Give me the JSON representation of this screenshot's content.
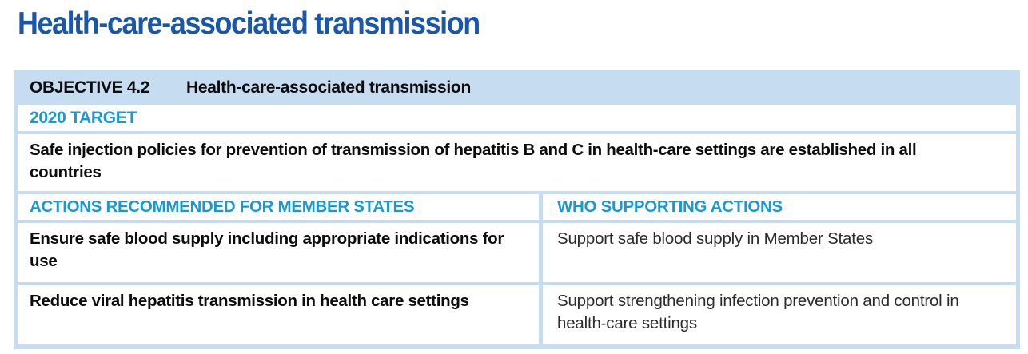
{
  "page": {
    "title": "Health-care-associated transmission"
  },
  "table": {
    "objective": {
      "label": "OBJECTIVE 4.2",
      "title": "Health-care-associated transmission"
    },
    "target": {
      "heading": "2020 TARGET",
      "text": "Safe injection policies for prevention of transmission of hepatitis B and C in health-care settings are established in all countries"
    },
    "columns": {
      "member_states": "ACTIONS RECOMMENDED FOR MEMBER STATES",
      "who": "WHO SUPPORTING ACTIONS"
    },
    "rows": [
      {
        "action": "Ensure safe blood supply including appropriate indications for use",
        "support": "Support safe blood supply in Member States"
      },
      {
        "action": "Reduce viral hepatitis transmission in health care settings",
        "support": "Support strengthening infection prevention and control in health-care settings"
      }
    ]
  },
  "colors": {
    "title_blue": "#1b57a8",
    "accent_blue": "#1899d6",
    "table_border_blue": "#c6dcf1",
    "body_text": "#0c0c0c",
    "support_text": "#2b2b2b"
  }
}
